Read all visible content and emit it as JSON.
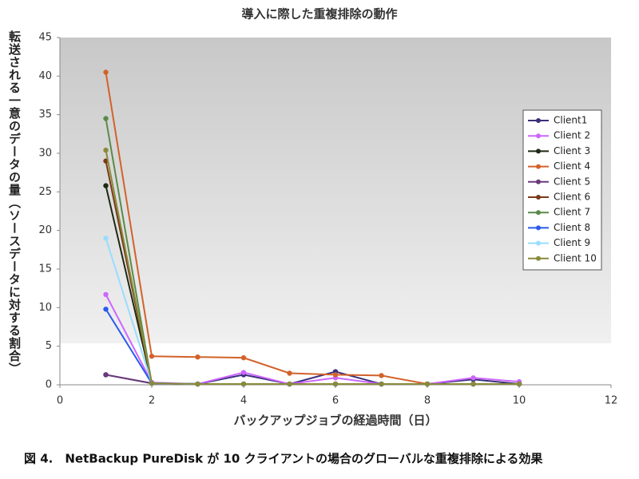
{
  "chart_data": {
    "type": "line",
    "title": "導入に際した重複排除の動作",
    "x_label": "バックアップジョブの経過時間（日）",
    "y_label": "転送される一意のデータの量（ソースデータに対する割合）",
    "caption": "図 4.　NetBackup PureDisk が 10 クライアントの場合のグローバルな重複排除による効果",
    "x": [
      1,
      2,
      3,
      4,
      5,
      6,
      7,
      8,
      9,
      10
    ],
    "xlim": [
      0,
      12
    ],
    "xticks": [
      0,
      2,
      4,
      6,
      8,
      10,
      12
    ],
    "ylim": [
      0,
      45
    ],
    "yticks": [
      0,
      5,
      10,
      15,
      20,
      25,
      30,
      35,
      40,
      45
    ],
    "legend": "right",
    "series": [
      {
        "name": "Client1",
        "color": "#3a2f7a",
        "values": [
          1.3,
          0.2,
          0.1,
          1.3,
          0.1,
          1.7,
          0.1,
          0.1,
          0.7,
          0.1
        ]
      },
      {
        "name": "Client 2",
        "color": "#cc66ff",
        "values": [
          11.7,
          0.3,
          0.1,
          1.6,
          0.1,
          0.9,
          0.1,
          0.1,
          0.9,
          0.4
        ]
      },
      {
        "name": "Client 3",
        "color": "#1e2a14",
        "values": [
          25.8,
          0.2,
          0.1,
          0.1,
          0.1,
          0.1,
          0.1,
          0.1,
          0.1,
          0.1
        ]
      },
      {
        "name": "Client 4",
        "color": "#d2622a",
        "values": [
          40.5,
          3.7,
          3.6,
          3.5,
          1.5,
          1.3,
          1.2,
          0.1,
          0.1,
          0.1
        ]
      },
      {
        "name": "Client 5",
        "color": "#6a3a7a",
        "values": [
          1.3,
          0.2,
          0.1,
          0.1,
          0.1,
          0.1,
          0.1,
          0.1,
          0.1,
          0.1
        ]
      },
      {
        "name": "Client 6",
        "color": "#7a3a1a",
        "values": [
          29,
          0.2,
          0.1,
          0.1,
          0.1,
          0.1,
          0.1,
          0.1,
          0.1,
          0.1
        ]
      },
      {
        "name": "Client 7",
        "color": "#5a8a4a",
        "values": [
          34.5,
          0.2,
          0.1,
          0.1,
          0.1,
          0.1,
          0.1,
          0.1,
          0.1,
          0.1
        ]
      },
      {
        "name": "Client 8",
        "color": "#2a5aee",
        "values": [
          9.8,
          0.2,
          0.1,
          0.1,
          0.1,
          0.1,
          0.1,
          0.1,
          0.1,
          0.1
        ]
      },
      {
        "name": "Client 9",
        "color": "#99ddff",
        "values": [
          19,
          0.2,
          0.1,
          0.1,
          0.1,
          0.1,
          0.1,
          0.1,
          0.1,
          0.1
        ]
      },
      {
        "name": "Client 10",
        "color": "#8a8a3a",
        "values": [
          30.4,
          0.2,
          0.1,
          0.1,
          0.1,
          0.1,
          0.1,
          0.1,
          0.1,
          0.1
        ]
      }
    ]
  }
}
